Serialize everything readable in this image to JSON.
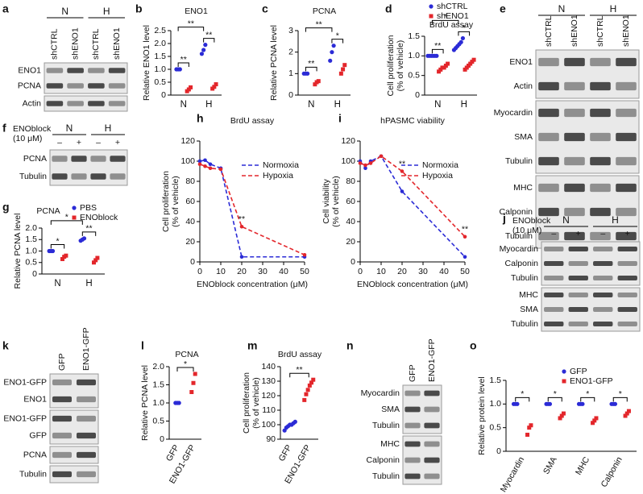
{
  "blots": [
    {
      "panel": "a",
      "groups": [
        {
          "label": "N",
          "span": 2
        },
        {
          "label": "H",
          "span": 2
        }
      ],
      "lanes": [
        "shCTRL",
        "shENO1",
        "shCTRL",
        "shENO1"
      ],
      "sections": [
        [
          "ENO1",
          "PCNA"
        ],
        [
          "Actin"
        ]
      ]
    },
    {
      "panel": "e",
      "groups": [
        {
          "label": "N",
          "span": 2
        },
        {
          "label": "H",
          "span": 2
        }
      ],
      "lanes": [
        "shCTRL",
        "shENO1",
        "shCTRL",
        "shENO1"
      ],
      "sections": [
        [
          "ENO1",
          "Actin"
        ],
        [
          "Myocardin",
          "SMA",
          "Tubulin"
        ],
        [
          "MHC",
          "Calponin",
          "Tubulin"
        ]
      ]
    },
    {
      "panel": "f",
      "treatment": [
        "ENOblock",
        "(10 μM)"
      ],
      "groups": [
        {
          "label": "N",
          "span": 2
        },
        {
          "label": "H",
          "span": 2
        }
      ],
      "lanes": [
        "–",
        "+",
        "–",
        "+"
      ],
      "sections": [
        [
          "PCNA",
          "Tubulin"
        ]
      ]
    },
    {
      "panel": "j",
      "treatment": [
        "ENOblock",
        "(10 μM)"
      ],
      "groups": [
        {
          "label": "N",
          "span": 2
        },
        {
          "label": "H",
          "span": 2
        }
      ],
      "lanes": [
        "–",
        "+",
        "–",
        "+"
      ],
      "sections": [
        [
          "Myocardin",
          "Calponin",
          "Tubulin"
        ],
        [
          "MHC",
          "SMA",
          "Tubulin"
        ]
      ]
    },
    {
      "panel": "k",
      "lanes": [
        "GFP",
        "ENO1-GFP"
      ],
      "sections": [
        [
          "ENO1-GFP",
          "ENO1"
        ],
        [
          "ENO1-GFP",
          "GFP"
        ],
        [
          "PCNA"
        ],
        [
          "Tubulin"
        ]
      ]
    },
    {
      "panel": "n",
      "lanes": [
        "GFP",
        "ENO1-GFP"
      ],
      "sections": [
        [
          "Myocardin",
          "SMA",
          "Tubulin"
        ],
        [
          "MHC",
          "Calponin",
          "Tubulin"
        ]
      ]
    }
  ],
  "chart_data": [
    {
      "panel": "b",
      "type": "dot",
      "title": "ENO1",
      "ylabel": [
        "Relative ENO1 level"
      ],
      "categories": [
        "N",
        "H"
      ],
      "series": [
        {
          "color": "#2b2bd6",
          "values": [
            [
              1,
              1,
              1
            ],
            [
              1.6,
              1.75,
              1.95
            ]
          ]
        },
        {
          "color": "#e3262b",
          "values": [
            [
              0.15,
              0.22,
              0.3
            ],
            [
              0.25,
              0.32,
              0.42
            ]
          ]
        }
      ],
      "ylim": [
        0,
        2.5
      ],
      "yticks": [
        0,
        0.5,
        {
          "value": 1,
          "label": "1.0"
        },
        1.5,
        {
          "value": 2,
          "label": "2.0"
        },
        2.5
      ],
      "brackets": [
        {
          "label": "**",
          "from": [
            0,
            0
          ],
          "to": [
            0,
            1
          ]
        },
        {
          "label": "**",
          "from": [
            1,
            0
          ],
          "to": [
            1,
            1
          ]
        },
        {
          "label": "**",
          "from": [
            0,
            0
          ],
          "to": [
            1,
            0
          ]
        }
      ]
    },
    {
      "panel": "c",
      "type": "dot",
      "title": "PCNA",
      "ylabel": [
        "Relative PCNA level"
      ],
      "categories": [
        "N",
        "H"
      ],
      "series": [
        {
          "color": "#2b2bd6",
          "values": [
            [
              1,
              1,
              1
            ],
            [
              1.6,
              2.0,
              2.3
            ]
          ]
        },
        {
          "color": "#e3262b",
          "values": [
            [
              0.5,
              0.6,
              0.65
            ],
            [
              1.0,
              1.2,
              1.4
            ]
          ]
        }
      ],
      "ylim": [
        0,
        3
      ],
      "yticks": [
        0,
        1,
        2,
        3
      ],
      "brackets": [
        {
          "label": "**",
          "from": [
            0,
            0
          ],
          "to": [
            0,
            1
          ]
        },
        {
          "label": "*",
          "from": [
            1,
            0
          ],
          "to": [
            1,
            1
          ]
        },
        {
          "label": "**",
          "from": [
            0,
            0
          ],
          "to": [
            1,
            0
          ]
        }
      ]
    },
    {
      "panel": "d",
      "type": "dot",
      "title": "BrdU assay",
      "ylabel": [
        "Cell proliferation",
        "(% of vehicle)"
      ],
      "categories": [
        "N",
        "H"
      ],
      "series": [
        {
          "name": "shCTRL",
          "color": "#2b2bd6",
          "values": [
            [
              1,
              1,
              1,
              1,
              1,
              1
            ],
            [
              1.15,
              1.2,
              1.25,
              1.3,
              1.35,
              1.45
            ]
          ]
        },
        {
          "name": "shENO1",
          "color": "#e3262b",
          "values": [
            [
              0.6,
              0.65,
              0.7,
              0.7,
              0.75,
              0.8
            ],
            [
              0.65,
              0.7,
              0.75,
              0.8,
              0.85,
              0.9
            ]
          ]
        }
      ],
      "ylim": [
        0,
        1.5
      ],
      "yticks": [
        0,
        0.5,
        {
          "value": 1,
          "label": "1.0"
        },
        1.5
      ],
      "brackets": [
        {
          "label": "**",
          "from": [
            0,
            0
          ],
          "to": [
            0,
            1
          ]
        },
        {
          "label": "*",
          "from": [
            1,
            0
          ],
          "to": [
            1,
            1
          ]
        },
        {
          "label": "*",
          "from": [
            0,
            0
          ],
          "to": [
            1,
            0
          ]
        }
      ]
    },
    {
      "panel": "g",
      "type": "dot",
      "title": "PCNA",
      "ylabel": [
        "Relative PCNA level"
      ],
      "categories": [
        "N",
        "H"
      ],
      "series": [
        {
          "name": "PBS",
          "color": "#2b2bd6",
          "values": [
            [
              1,
              1,
              1
            ],
            [
              1.45,
              1.5,
              1.55
            ]
          ]
        },
        {
          "name": "ENOblock",
          "color": "#e3262b",
          "values": [
            [
              0.65,
              0.75,
              0.8
            ],
            [
              0.5,
              0.6,
              0.7
            ]
          ]
        }
      ],
      "ylim": [
        0,
        2
      ],
      "yticks": [
        0,
        0.5,
        {
          "value": 1,
          "label": "1.0"
        },
        1.5,
        {
          "value": 2,
          "label": "2.0"
        }
      ],
      "brackets": [
        {
          "label": "*",
          "from": [
            0,
            0
          ],
          "to": [
            0,
            1
          ]
        },
        {
          "label": "**",
          "from": [
            1,
            0
          ],
          "to": [
            1,
            1
          ]
        },
        {
          "label": "*",
          "from": [
            0,
            0
          ],
          "to": [
            1,
            0
          ]
        }
      ]
    },
    {
      "panel": "h",
      "type": "line",
      "title": "BrdU assay",
      "xlabel": "ENOblock concentration (μM)",
      "ylabel": [
        "Cell proliferation",
        "(% of vehicle)"
      ],
      "dashed": true,
      "x": [
        0,
        2.5,
        5,
        10,
        20,
        50
      ],
      "series": [
        {
          "name": "Normoxia",
          "color": "#2b2bd6",
          "values": [
            100,
            101,
            97,
            93,
            5,
            5
          ]
        },
        {
          "name": "Hypoxia",
          "color": "#e3262b",
          "values": [
            97,
            95,
            93,
            92,
            35,
            7
          ]
        }
      ],
      "xlim": [
        0,
        50
      ],
      "xticks": [
        0,
        10,
        20,
        30,
        40,
        50
      ],
      "ylim": [
        0,
        120
      ],
      "yticks": [
        0,
        20,
        40,
        60,
        80,
        100,
        120
      ],
      "annotations": [
        {
          "text": "**",
          "x": 20
        }
      ]
    },
    {
      "panel": "i",
      "type": "line",
      "title": "hPASMC viability",
      "xlabel": "ENOblock concentration (μM)",
      "ylabel": [
        "Cell viability",
        "(% of vehicle)"
      ],
      "dashed": true,
      "x": [
        0,
        2.5,
        5,
        10,
        20,
        50
      ],
      "series": [
        {
          "name": "Normoxia",
          "color": "#2b2bd6",
          "values": [
            100,
            93,
            100,
            105,
            70,
            5
          ]
        },
        {
          "name": "Hypoxia",
          "color": "#e3262b",
          "values": [
            98,
            96,
            98,
            105,
            90,
            25
          ]
        }
      ],
      "xlim": [
        0,
        50
      ],
      "xticks": [
        0,
        10,
        20,
        30,
        40,
        50
      ],
      "ylim": [
        0,
        120
      ],
      "yticks": [
        0,
        20,
        40,
        60,
        80,
        100,
        120
      ],
      "annotations": [
        {
          "text": "**",
          "x": 20
        },
        {
          "text": "**",
          "x": 50
        }
      ]
    },
    {
      "panel": "l",
      "type": "dot",
      "title": "PCNA",
      "ylabel": [
        "Relative PCNA level"
      ],
      "categories": [
        "GFP",
        "ENO1-GFP"
      ],
      "colors": [
        "#2b2bd6",
        "#e3262b"
      ],
      "values": [
        [
          1,
          1,
          1
        ],
        [
          1.3,
          1.55,
          1.8
        ]
      ],
      "ylim": [
        0,
        2
      ],
      "yticks": [
        0,
        0.5,
        {
          "value": 1,
          "label": "1.0"
        },
        1.5,
        {
          "value": 2,
          "label": "2.0"
        }
      ],
      "brackets": [
        {
          "label": "*",
          "from": [
            0
          ],
          "to": [
            1
          ]
        }
      ]
    },
    {
      "panel": "m",
      "type": "dot",
      "title": "BrdU assay",
      "ylabel": [
        "Cell proliferation",
        "(% of vehicle)"
      ],
      "categories": [
        "GFP",
        "ENO1-GFP"
      ],
      "colors": [
        "#2b2bd6",
        "#e3262b"
      ],
      "values": [
        [
          96,
          98,
          99,
          100,
          100,
          101,
          102
        ],
        [
          117,
          121,
          124,
          127,
          129,
          131
        ]
      ],
      "ylim": [
        90,
        140
      ],
      "yticks": [
        90,
        100,
        110,
        120,
        130,
        140
      ],
      "brackets": [
        {
          "label": "**",
          "from": [
            0
          ],
          "to": [
            1
          ]
        }
      ]
    },
    {
      "panel": "o",
      "type": "dot",
      "ylabel": [
        "Relative protein level"
      ],
      "categories": [
        "Myocardin",
        "SMA",
        "MHC",
        "Calponin"
      ],
      "series": [
        {
          "name": "GFP",
          "color": "#2b2bd6",
          "values": [
            [
              1,
              1,
              1
            ],
            [
              1,
              1,
              1
            ],
            [
              1,
              1,
              1
            ],
            [
              1,
              1,
              1
            ]
          ]
        },
        {
          "name": "ENO1-GFP",
          "color": "#e3262b",
          "values": [
            [
              0.35,
              0.5,
              0.55
            ],
            [
              0.7,
              0.75,
              0.8
            ],
            [
              0.6,
              0.65,
              0.7
            ],
            [
              0.75,
              0.8,
              0.85
            ]
          ]
        }
      ],
      "ylim": [
        0,
        1.5
      ],
      "yticks": [
        0,
        0.5,
        {
          "value": 1,
          "label": "1.0"
        },
        1.5
      ],
      "brackets": [
        {
          "label": "*",
          "from": [
            0,
            0
          ],
          "to": [
            0,
            1
          ]
        },
        {
          "label": "*",
          "from": [
            1,
            0
          ],
          "to": [
            1,
            1
          ]
        },
        {
          "label": "*",
          "from": [
            2,
            0
          ],
          "to": [
            2,
            1
          ]
        },
        {
          "label": "*",
          "from": [
            3,
            0
          ],
          "to": [
            3,
            1
          ]
        }
      ]
    }
  ]
}
